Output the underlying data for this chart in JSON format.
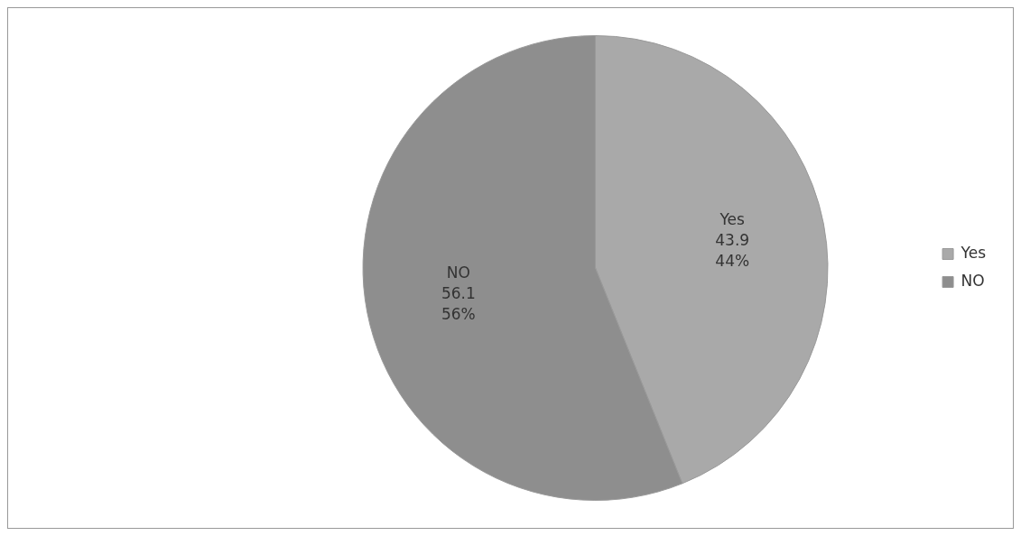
{
  "chart_data": {
    "type": "pie",
    "categories": [
      "Yes",
      "NO"
    ],
    "values": [
      43.9,
      56.1
    ],
    "colors": [
      "#a9a9a9",
      "#8e8e8e"
    ],
    "value_labels": [
      "43.9\n44%",
      "56.1\n56%"
    ],
    "legend": "right"
  }
}
